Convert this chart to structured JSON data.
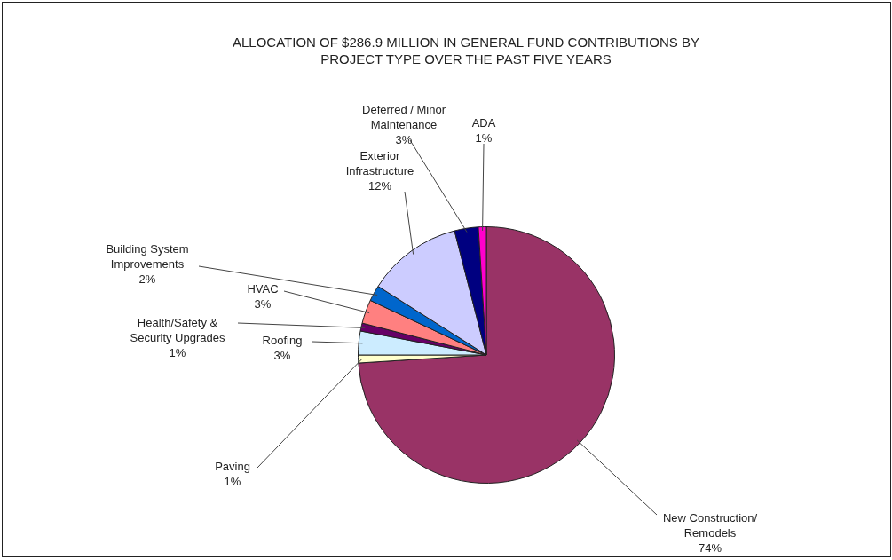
{
  "chart_data": {
    "type": "pie",
    "title": "ALLOCATION OF $286.9 MILLION IN GENERAL FUND CONTRIBUTIONS BY PROJECT TYPE OVER THE PAST FIVE YEARS",
    "categories": [
      "New Construction/ Remodels",
      "Paving",
      "Roofing",
      "Health/Safety & Security Upgrades",
      "HVAC",
      "Building System Improvements",
      "Exterior Infrastructure",
      "Deferred / Minor Maintenance",
      "ADA"
    ],
    "values": [
      74,
      1,
      3,
      1,
      3,
      2,
      12,
      3,
      1
    ],
    "value_labels": [
      "74%",
      "1%",
      "3%",
      "1%",
      "3%",
      "2%",
      "12%",
      "3%",
      "1%"
    ],
    "colors": [
      "#993366",
      "#ffffcc",
      "#ccecff",
      "#660066",
      "#ff8080",
      "#0066cc",
      "#ccccff",
      "#000080",
      "#ff00cc"
    ],
    "legend": false
  }
}
